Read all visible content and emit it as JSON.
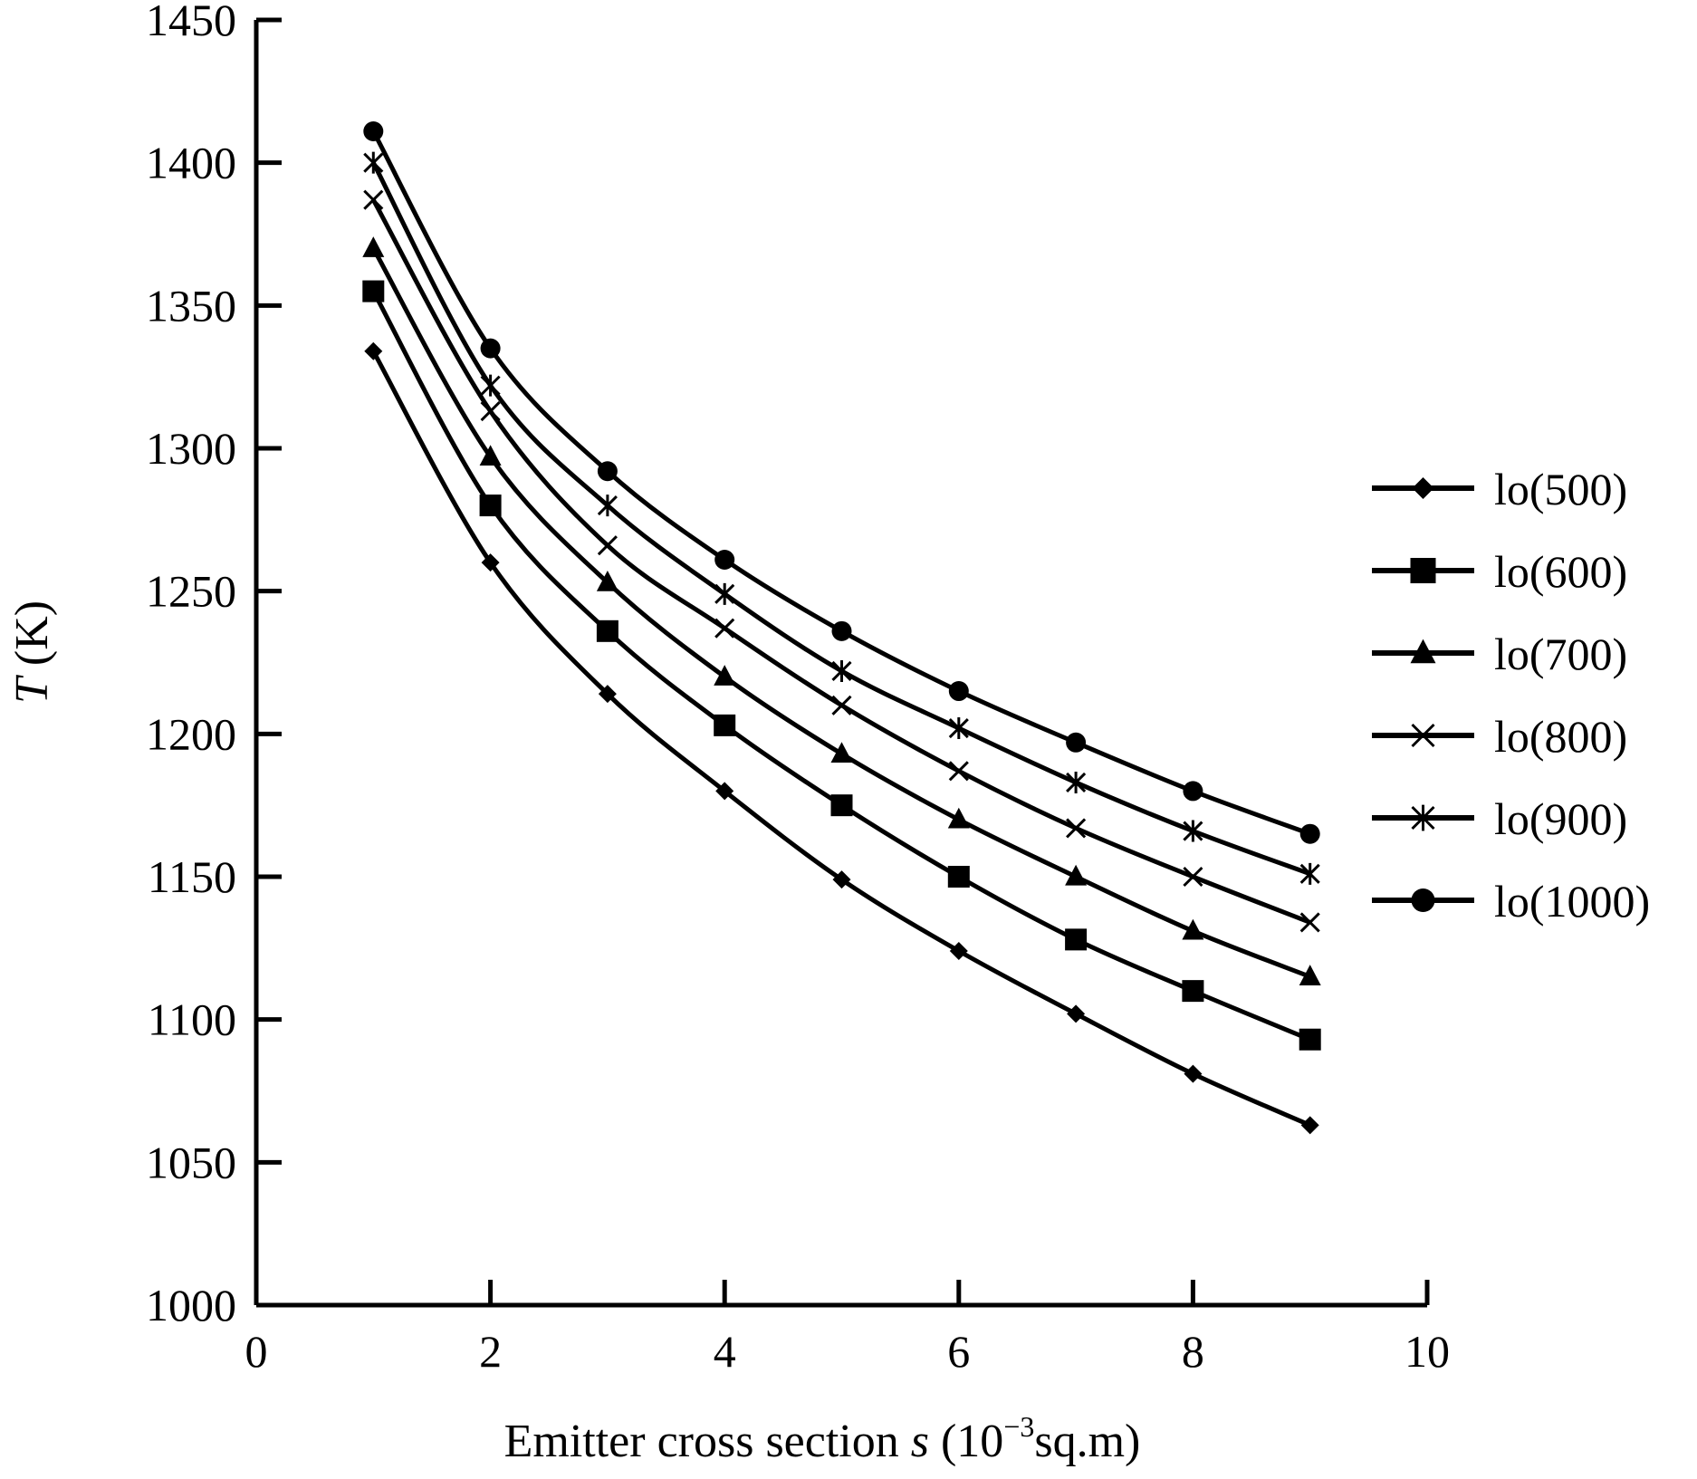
{
  "chart_data": {
    "type": "line",
    "title": "",
    "xlabel": {
      "main": "Emitter cross section ",
      "var": "s",
      "unit_pre": " (10",
      "unit_sup": "−3",
      "unit_post": "sq.m)"
    },
    "ylabel": {
      "var": "T",
      "unit": " (K)"
    },
    "xlim": [
      0,
      10
    ],
    "ylim": [
      1000,
      1450
    ],
    "xticks": [
      "0",
      "2",
      "4",
      "6",
      "8",
      "10"
    ],
    "yticks": [
      "1000",
      "1050",
      "1100",
      "1150",
      "1200",
      "1250",
      "1300",
      "1350",
      "1400",
      "1450"
    ],
    "grid": false,
    "legend_position": "right",
    "x": [
      1,
      2,
      3,
      4,
      5,
      6,
      7,
      8,
      9
    ],
    "series": [
      {
        "name": "lo(500)",
        "marker": "diamond",
        "values": [
          1334,
          1260,
          1214,
          1180,
          1149,
          1124,
          1102,
          1081,
          1063
        ]
      },
      {
        "name": "lo(600)",
        "marker": "square",
        "values": [
          1355,
          1280,
          1236,
          1203,
          1175,
          1150,
          1128,
          1110,
          1093
        ]
      },
      {
        "name": "lo(700)",
        "marker": "triangle",
        "values": [
          1370,
          1297,
          1253,
          1220,
          1193,
          1170,
          1150,
          1131,
          1115
        ]
      },
      {
        "name": "lo(800)",
        "marker": "x",
        "values": [
          1387,
          1313,
          1266,
          1237,
          1210,
          1187,
          1167,
          1150,
          1134
        ]
      },
      {
        "name": "lo(900)",
        "marker": "star",
        "values": [
          1400,
          1322,
          1280,
          1249,
          1222,
          1202,
          1183,
          1166,
          1151
        ]
      },
      {
        "name": "lo(1000)",
        "marker": "circle",
        "values": [
          1411,
          1335,
          1292,
          1261,
          1236,
          1215,
          1197,
          1180,
          1165
        ]
      }
    ],
    "colors": {
      "line": "#000000",
      "background": "#ffffff"
    }
  }
}
